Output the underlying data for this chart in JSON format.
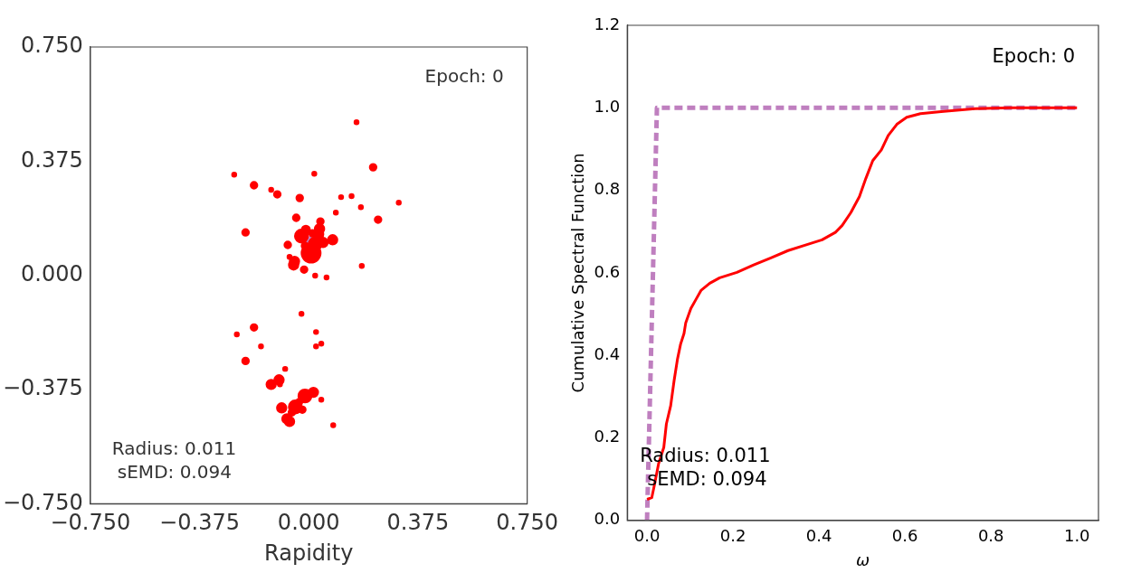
{
  "chart_data": [
    {
      "type": "bubble",
      "xlabel": "Rapidity",
      "xlim": [
        -0.75,
        0.75
      ],
      "xticks": [
        {
          "value": -0.75,
          "label": "−0.750"
        },
        {
          "value": -0.375,
          "label": "−0.375"
        },
        {
          "value": 0,
          "label": "0.000"
        },
        {
          "value": 0.375,
          "label": "0.375"
        },
        {
          "value": 0.75,
          "label": "0.750"
        }
      ],
      "ylim": [
        -0.75,
        0.75
      ],
      "yticks": [
        {
          "value": -0.75,
          "label": "−0.750"
        },
        {
          "value": -0.375,
          "label": "−0.375"
        },
        {
          "value": 0,
          "label": "0.000"
        },
        {
          "value": 0.375,
          "label": "0.375"
        },
        {
          "value": 0.75,
          "label": "0.750"
        }
      ],
      "grid": false,
      "legend": false,
      "marker": "circle",
      "annotations": [
        "Epoch: 0",
        "Radius: 0.011",
        "sEMD: 0.094"
      ],
      "series": [
        {
          "color": "#b88ad0",
          "x": [
            0.008
          ],
          "values": [
            0.108
          ],
          "sizes": [
            0.35
          ]
        },
        {
          "color": "#ff0000",
          "x": [
            0.164,
            0.221,
            -0.256,
            0.019,
            -0.188,
            -0.129,
            -0.108,
            -0.031,
            0.111,
            0.147,
            0.309,
            0.179,
            0.093,
            -0.043,
            0.04,
            0.238,
            -0.217,
            0.037,
            -0.01,
            -0.025,
            0.013,
            0.034,
            0.082,
            0.049,
            0.022,
            -0.013,
            -0.072,
            0.008,
            -0.066,
            -0.049,
            -0.052,
            -0.016,
            0.022,
            0.061,
            0.182,
            -0.025,
            -0.188,
            -0.247,
            0.025,
            0.043,
            0.025,
            -0.164,
            -0.217,
            -0.081,
            -0.102,
            -0.129,
            -0.099,
            -0.013,
            0.016,
            0.043,
            -0.093,
            -0.034,
            -0.046,
            -0.058,
            -0.022,
            -0.075,
            -0.066,
            0.084
          ],
          "values": [
            0.503,
            0.355,
            0.331,
            0.334,
            0.296,
            0.281,
            0.266,
            0.254,
            0.257,
            0.26,
            0.239,
            0.224,
            0.206,
            0.189,
            0.177,
            0.183,
            0.141,
            0.153,
            0.15,
            0.129,
            0.138,
            0.135,
            0.117,
            0.108,
            0.103,
            0.097,
            0.1,
            0.073,
            0.061,
            0.046,
            0.034,
            0.019,
            -0.001,
            -0.007,
            0.031,
            -0.126,
            -0.171,
            -0.194,
            -0.186,
            -0.224,
            -0.233,
            -0.233,
            -0.281,
            -0.307,
            -0.343,
            -0.358,
            -0.358,
            -0.396,
            -0.384,
            -0.408,
            -0.435,
            -0.417,
            -0.432,
            -0.45,
            -0.441,
            -0.471,
            -0.48,
            -0.492
          ],
          "sizes": [
            0.03,
            0.1,
            0.03,
            0.03,
            0.1,
            0.03,
            0.1,
            0.1,
            0.03,
            0.03,
            0.03,
            0.03,
            0.03,
            0.1,
            0.1,
            0.1,
            0.1,
            0.22,
            0.16,
            0.45,
            0.1,
            0.22,
            0.22,
            0.22,
            0.45,
            0.1,
            0.1,
            1,
            0.03,
            0.22,
            0.22,
            0.1,
            0.03,
            0.03,
            0.03,
            0.03,
            0.1,
            0.03,
            0.03,
            0.03,
            0.03,
            0.03,
            0.1,
            0.03,
            0.22,
            0.22,
            0.03,
            0.45,
            0.22,
            0.03,
            0.22,
            0.1,
            0.45,
            0.1,
            0.1,
            0.22,
            0.22,
            0.03
          ]
        }
      ]
    },
    {
      "type": "line",
      "xlabel": "ω",
      "ylabel": "Cumulative Spectral Function",
      "xlim": [
        -0.046,
        1.05
      ],
      "xticks": [
        {
          "value": 0,
          "label": "0.0"
        },
        0.2,
        0.4,
        0.6,
        0.8,
        {
          "value": 1,
          "label": "1.0"
        }
      ],
      "ylim": [
        0,
        1.2
      ],
      "yticks": [
        {
          "value": 0,
          "label": "0.0"
        },
        0.2,
        0.4,
        0.6,
        0.8,
        {
          "value": 1,
          "label": "1.0"
        },
        1.2
      ],
      "grid": false,
      "legend": false,
      "marker": "none",
      "annotations": [
        "Epoch: 0",
        "Radius: 0.011",
        "sEMD: 0.094"
      ],
      "series": [
        {
          "color": "#bf7fbf",
          "line_style": "dashed",
          "x": [
            0,
            0.023,
            1
          ],
          "values": [
            0,
            1,
            1
          ]
        },
        {
          "color": "#ff0000",
          "line_style": "solid",
          "x": [
            0,
            0.011,
            0.017,
            0.027,
            0.039,
            0.045,
            0.055,
            0.063,
            0.071,
            0.078,
            0.086,
            0.09,
            0.102,
            0.114,
            0.126,
            0.146,
            0.169,
            0.209,
            0.248,
            0.288,
            0.328,
            0.367,
            0.407,
            0.438,
            0.454,
            0.474,
            0.494,
            0.509,
            0.525,
            0.545,
            0.561,
            0.581,
            0.604,
            0.636,
            0.684,
            0.763,
            0.842,
            1
          ],
          "values": [
            0.051,
            0.055,
            0.085,
            0.138,
            0.177,
            0.234,
            0.278,
            0.339,
            0.392,
            0.427,
            0.453,
            0.479,
            0.514,
            0.536,
            0.558,
            0.575,
            0.588,
            0.601,
            0.619,
            0.636,
            0.654,
            0.667,
            0.68,
            0.698,
            0.715,
            0.746,
            0.785,
            0.829,
            0.872,
            0.898,
            0.933,
            0.96,
            0.977,
            0.986,
            0.991,
            0.998,
            1.0,
            1.0
          ]
        }
      ]
    }
  ]
}
